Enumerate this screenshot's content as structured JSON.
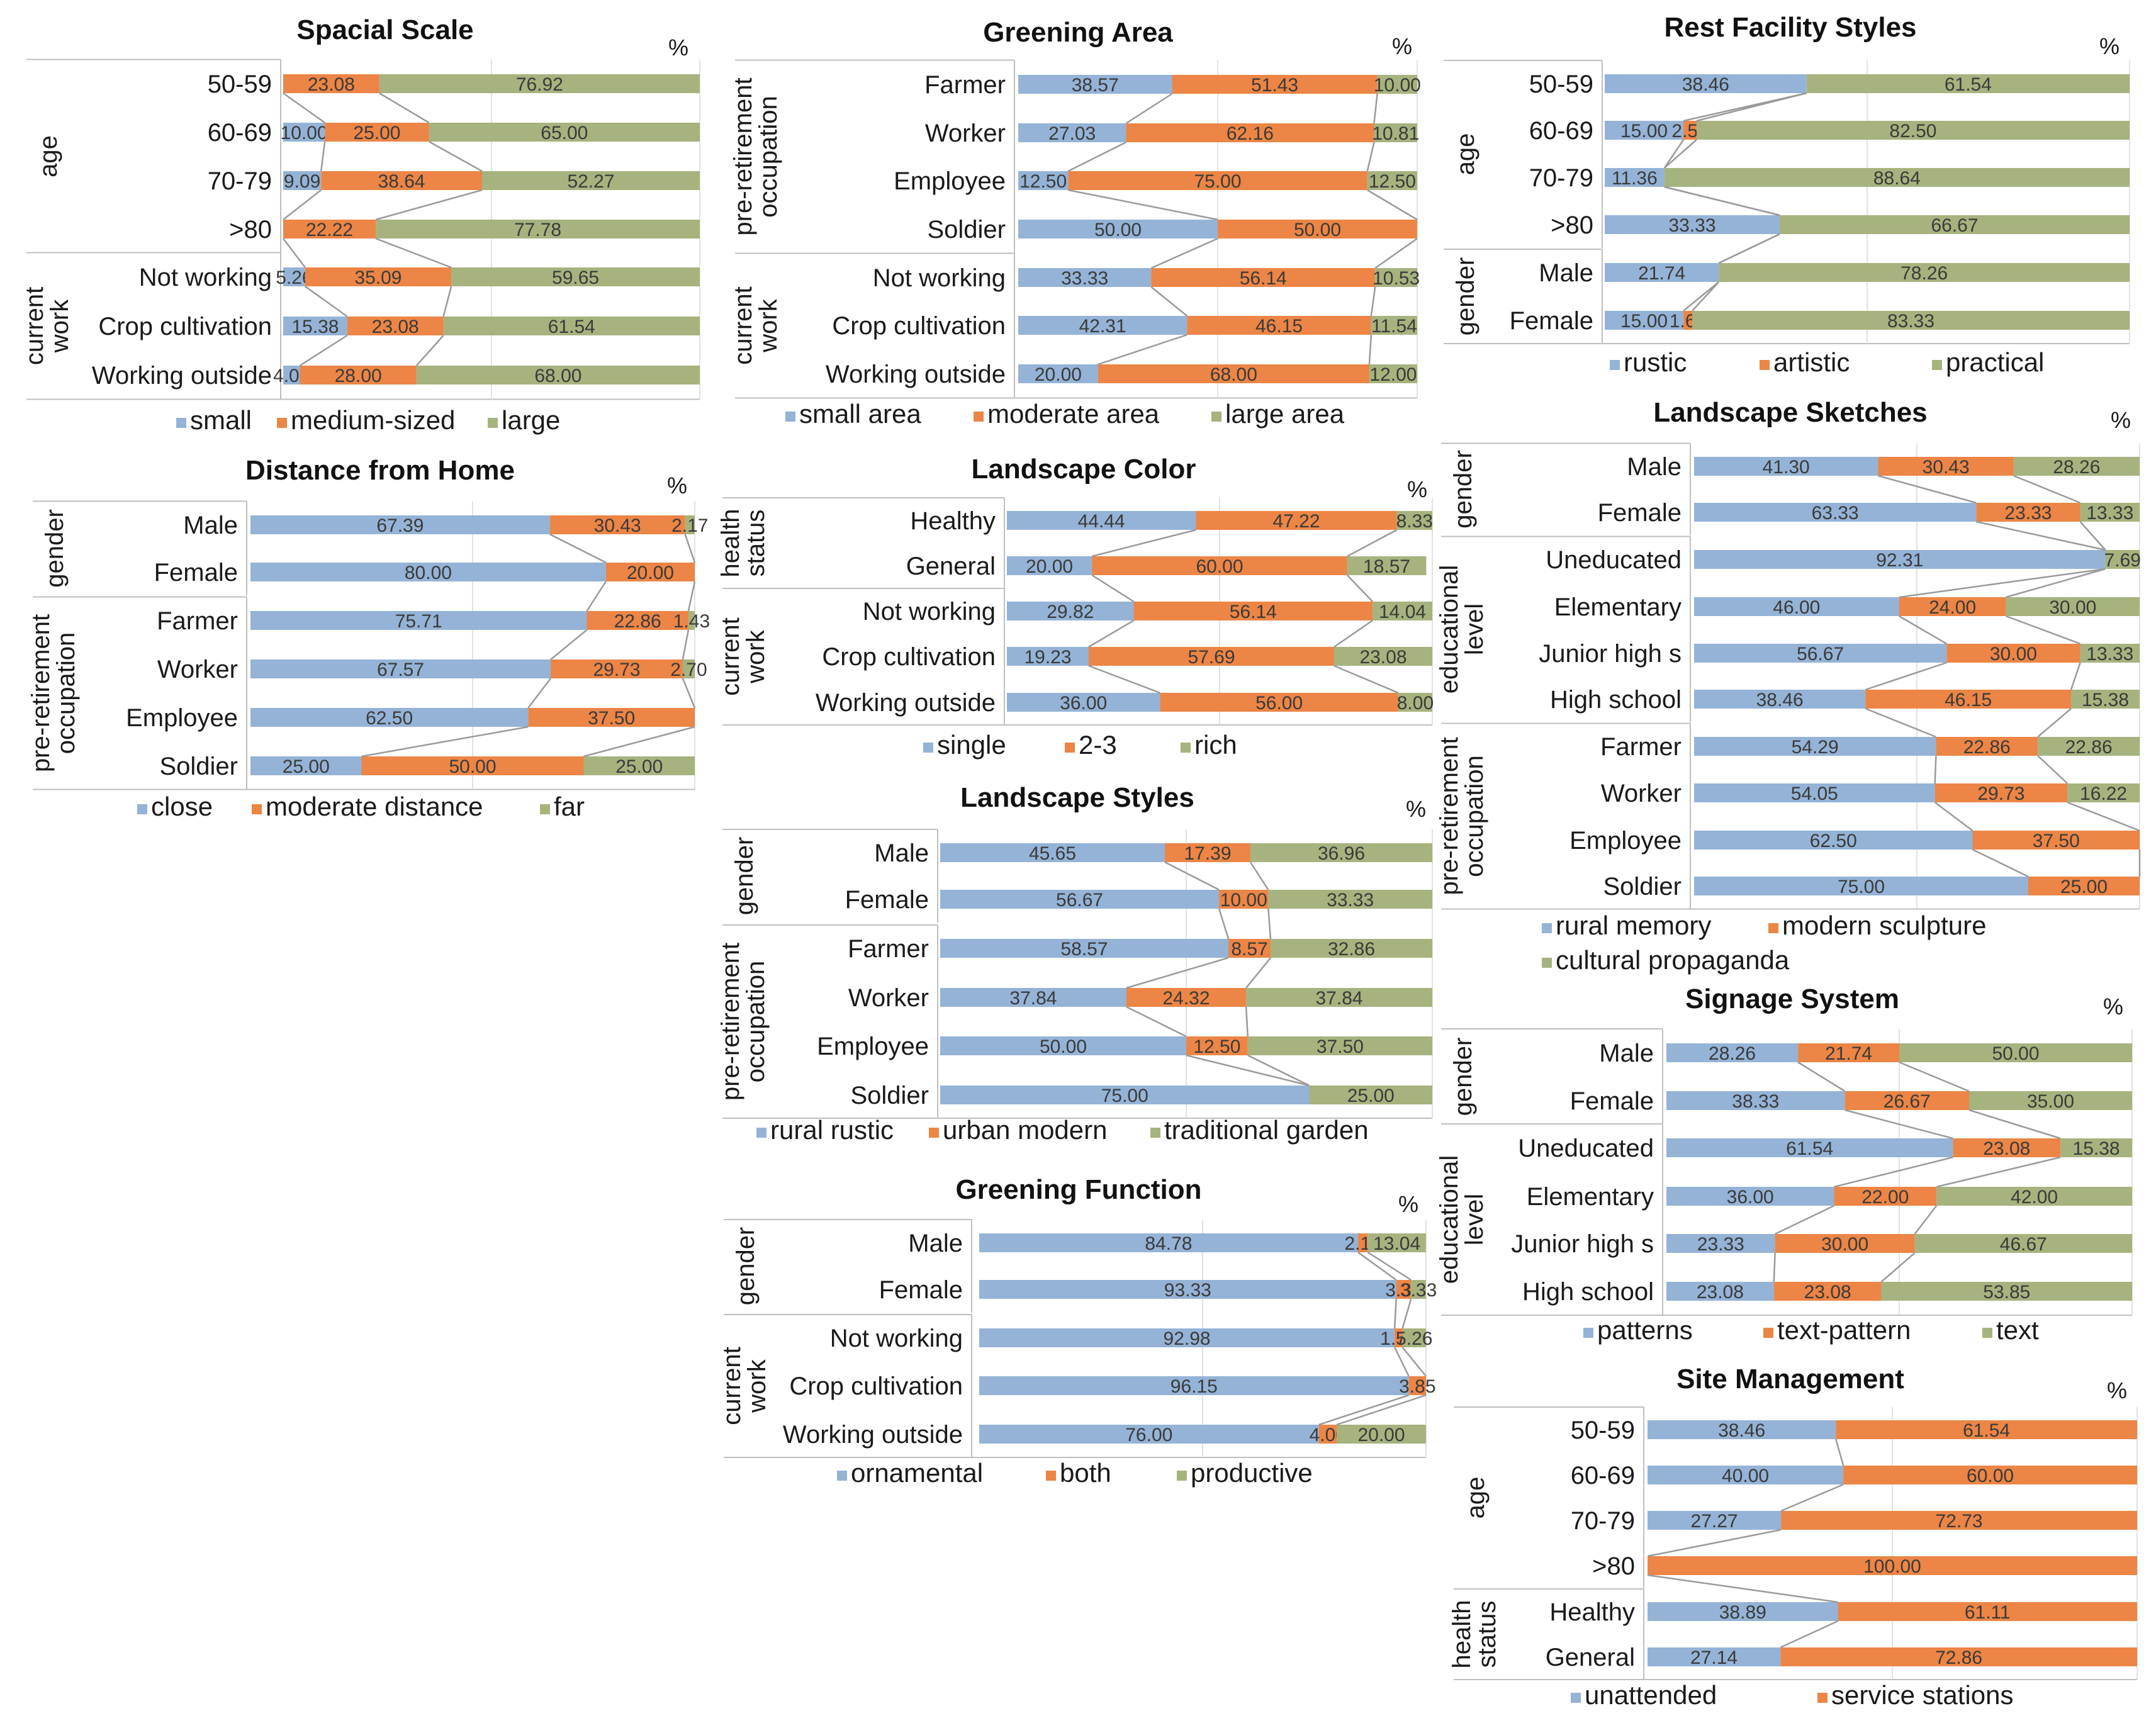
{
  "colors": {
    "blue": "#94b3d6",
    "orange": "#ec8545",
    "green": "#a6b37e",
    "connector": "#9a9a9a",
    "grid": "#bfbfbf",
    "frame": "#bfbfbf"
  },
  "chart_data": [
    {
      "type": "bar",
      "stacked": true,
      "title": "Spacial Scale",
      "unit": "%",
      "legend": [
        "small",
        "medium-sized",
        "large"
      ],
      "legend_rows": [
        [
          "small",
          "medium-sized",
          "large"
        ]
      ],
      "groups": [
        {
          "name": "age",
          "rows": [
            {
              "label": "50-59",
              "values": [
                null,
                23.08,
                76.92
              ]
            },
            {
              "label": "60-69",
              "values": [
                10.0,
                25.0,
                65.0
              ]
            },
            {
              "label": "70-79",
              "values": [
                9.09,
                38.64,
                52.27
              ]
            },
            {
              "label": ">80",
              "values": [
                null,
                22.22,
                77.78
              ]
            }
          ]
        },
        {
          "name": "current work",
          "rows": [
            {
              "label": "Not working",
              "values": [
                5.26,
                35.09,
                59.65
              ]
            },
            {
              "label": "Crop cultivation",
              "values": [
                15.38,
                23.08,
                61.54
              ]
            },
            {
              "label": "Working outside",
              "values": [
                4.0,
                28.0,
                68.0
              ]
            }
          ]
        }
      ]
    },
    {
      "type": "bar",
      "stacked": true,
      "title": "Greening Area",
      "unit": "%",
      "legend": [
        "small area",
        "moderate area",
        "large area"
      ],
      "legend_rows": [
        [
          "small area",
          "moderate area",
          "large area"
        ]
      ],
      "groups": [
        {
          "name": "pre-retirement occupation",
          "rows": [
            {
              "label": "Farmer",
              "values": [
                38.57,
                51.43,
                10.0
              ]
            },
            {
              "label": "Worker",
              "values": [
                27.03,
                62.16,
                10.81
              ]
            },
            {
              "label": "Employee",
              "values": [
                12.5,
                75.0,
                12.5
              ]
            },
            {
              "label": "Soldier",
              "values": [
                50.0,
                50.0,
                null
              ]
            }
          ]
        },
        {
          "name": "current work",
          "rows": [
            {
              "label": "Not working",
              "values": [
                33.33,
                56.14,
                10.53
              ]
            },
            {
              "label": "Crop cultivation",
              "values": [
                42.31,
                46.15,
                11.54
              ]
            },
            {
              "label": "Working outside",
              "values": [
                20.0,
                68.0,
                12.0
              ]
            }
          ]
        }
      ]
    },
    {
      "type": "bar",
      "stacked": true,
      "title": "Rest Facility Styles",
      "unit": "%",
      "legend": [
        "rustic",
        "artistic",
        "practical"
      ],
      "legend_rows": [
        [
          "rustic",
          "artistic",
          "practical"
        ]
      ],
      "groups": [
        {
          "name": "age",
          "rows": [
            {
              "label": "50-59",
              "values": [
                38.46,
                null,
                61.54
              ]
            },
            {
              "label": "60-69",
              "values": [
                15.0,
                2.5,
                82.5
              ]
            },
            {
              "label": "70-79",
              "values": [
                11.36,
                null,
                88.64
              ]
            },
            {
              "label": ">80",
              "values": [
                33.33,
                null,
                66.67
              ]
            }
          ]
        },
        {
          "name": "gender",
          "rows": [
            {
              "label": "Male",
              "values": [
                21.74,
                null,
                78.26
              ]
            },
            {
              "label": "Female",
              "values": [
                15.0,
                1.67,
                83.33
              ]
            }
          ]
        }
      ]
    },
    {
      "type": "bar",
      "stacked": true,
      "title": "Distance from Home",
      "unit": "%",
      "legend": [
        "close",
        "moderate distance",
        "far"
      ],
      "legend_rows": [
        [
          "close",
          "moderate distance",
          "far"
        ]
      ],
      "groups": [
        {
          "name": "gender",
          "rows": [
            {
              "label": "Male",
              "values": [
                67.39,
                30.43,
                2.17
              ]
            },
            {
              "label": "Female",
              "values": [
                80.0,
                20.0,
                null
              ]
            }
          ]
        },
        {
          "name": "pre-retirement occupation",
          "rows": [
            {
              "label": "Farmer",
              "values": [
                75.71,
                22.86,
                1.43
              ]
            },
            {
              "label": "Worker",
              "values": [
                67.57,
                29.73,
                2.7
              ]
            },
            {
              "label": "Employee",
              "values": [
                62.5,
                37.5,
                null
              ]
            },
            {
              "label": "Soldier",
              "values": [
                25.0,
                50.0,
                25.0
              ]
            }
          ]
        }
      ]
    },
    {
      "type": "bar",
      "stacked": true,
      "title": "Landscape Color",
      "unit": "%",
      "legend": [
        "single",
        "2-3",
        "rich"
      ],
      "legend_rows": [
        [
          "single",
          "2-3",
          "rich"
        ]
      ],
      "groups": [
        {
          "name": "health status",
          "rows": [
            {
              "label": "Healthy",
              "values": [
                44.44,
                47.22,
                8.33
              ]
            },
            {
              "label": "General",
              "values": [
                20.0,
                60.0,
                18.57
              ]
            }
          ]
        },
        {
          "name": "current work",
          "rows": [
            {
              "label": "Not working",
              "values": [
                29.82,
                56.14,
                14.04
              ]
            },
            {
              "label": "Crop cultivation",
              "values": [
                19.23,
                57.69,
                23.08
              ]
            },
            {
              "label": "Working outside",
              "values": [
                36.0,
                56.0,
                8.0
              ]
            }
          ]
        }
      ]
    },
    {
      "type": "bar",
      "stacked": true,
      "title": "Landscape Styles",
      "unit": "%",
      "legend": [
        "rural rustic",
        "urban modern",
        "traditional garden"
      ],
      "legend_rows": [
        [
          "rural rustic",
          "urban modern",
          "traditional garden"
        ]
      ],
      "groups": [
        {
          "name": "gender",
          "rows": [
            {
              "label": "Male",
              "values": [
                45.65,
                17.39,
                36.96
              ]
            },
            {
              "label": "Female",
              "values": [
                56.67,
                10.0,
                33.33
              ]
            }
          ]
        },
        {
          "name": "pre-retirement occupation",
          "rows": [
            {
              "label": "Farmer",
              "values": [
                58.57,
                8.57,
                32.86
              ]
            },
            {
              "label": "Worker",
              "values": [
                37.84,
                24.32,
                37.84
              ]
            },
            {
              "label": "Employee",
              "values": [
                50.0,
                12.5,
                37.5
              ]
            },
            {
              "label": "Soldier",
              "values": [
                75.0,
                null,
                25.0
              ]
            }
          ]
        }
      ]
    },
    {
      "type": "bar",
      "stacked": true,
      "title": "Greening Function",
      "unit": "%",
      "legend": [
        "ornamental",
        "both",
        "productive"
      ],
      "legend_rows": [
        [
          "ornamental",
          "both",
          "productive"
        ]
      ],
      "groups": [
        {
          "name": "gender",
          "rows": [
            {
              "label": "Male",
              "values": [
                84.78,
                2.17,
                13.04
              ]
            },
            {
              "label": "Female",
              "values": [
                93.33,
                3.33,
                3.33
              ]
            }
          ]
        },
        {
          "name": "current work",
          "rows": [
            {
              "label": "Not working",
              "values": [
                92.98,
                1.75,
                5.26
              ]
            },
            {
              "label": "Crop cultivation",
              "values": [
                96.15,
                3.85,
                null
              ]
            },
            {
              "label": "Working outside",
              "values": [
                76.0,
                4.0,
                20.0
              ]
            }
          ]
        }
      ]
    },
    {
      "type": "bar",
      "stacked": true,
      "title": "Landscape Sketches",
      "unit": "%",
      "legend": [
        "rural memory",
        "modern sculpture",
        "cultural propaganda"
      ],
      "legend_rows": [
        [
          "rural memory",
          "modern sculpture"
        ],
        [
          "cultural propaganda"
        ]
      ],
      "groups": [
        {
          "name": "gender",
          "rows": [
            {
              "label": "Male",
              "values": [
                41.3,
                30.43,
                28.26
              ]
            },
            {
              "label": "Female",
              "values": [
                63.33,
                23.33,
                13.33
              ]
            }
          ]
        },
        {
          "name": "educational level",
          "rows": [
            {
              "label": "Uneducated",
              "values": [
                92.31,
                null,
                7.69
              ]
            },
            {
              "label": "Elementary",
              "values": [
                46.0,
                24.0,
                30.0
              ]
            },
            {
              "label": "Junior high s",
              "values": [
                56.67,
                30.0,
                13.33
              ]
            },
            {
              "label": "High school",
              "values": [
                38.46,
                46.15,
                15.38
              ]
            }
          ]
        },
        {
          "name": "pre-retirement occupation",
          "rows": [
            {
              "label": "Farmer",
              "values": [
                54.29,
                22.86,
                22.86
              ]
            },
            {
              "label": "Worker",
              "values": [
                54.05,
                29.73,
                16.22
              ]
            },
            {
              "label": "Employee",
              "values": [
                62.5,
                37.5,
                null
              ]
            },
            {
              "label": "Soldier",
              "values": [
                75.0,
                25.0,
                null
              ]
            }
          ]
        }
      ]
    },
    {
      "type": "bar",
      "stacked": true,
      "title": "Signage System",
      "unit": "%",
      "legend": [
        "patterns",
        "text-pattern",
        "text"
      ],
      "legend_rows": [
        [
          "patterns",
          "text-pattern",
          "text"
        ]
      ],
      "groups": [
        {
          "name": "gender",
          "rows": [
            {
              "label": "Male",
              "values": [
                28.26,
                21.74,
                50.0
              ]
            },
            {
              "label": "Female",
              "values": [
                38.33,
                26.67,
                35.0
              ]
            }
          ]
        },
        {
          "name": "educational level",
          "rows": [
            {
              "label": "Uneducated",
              "values": [
                61.54,
                23.08,
                15.38
              ]
            },
            {
              "label": "Elementary",
              "values": [
                36.0,
                22.0,
                42.0
              ]
            },
            {
              "label": "Junior high s",
              "values": [
                23.33,
                30.0,
                46.67
              ]
            },
            {
              "label": "High school",
              "values": [
                23.08,
                23.08,
                53.85
              ]
            }
          ]
        }
      ]
    },
    {
      "type": "bar",
      "stacked": true,
      "title": "Site Management",
      "unit": "%",
      "legend": [
        "unattended",
        "service stations"
      ],
      "legend_rows": [
        [
          "unattended",
          "service stations"
        ]
      ],
      "groups": [
        {
          "name": "age",
          "rows": [
            {
              "label": "50-59",
              "values": [
                38.46,
                61.54
              ]
            },
            {
              "label": "60-69",
              "values": [
                40.0,
                60.0
              ]
            },
            {
              "label": "70-79",
              "values": [
                27.27,
                72.73
              ]
            },
            {
              "label": ">80",
              "values": [
                null,
                100.0
              ]
            }
          ]
        },
        {
          "name": "health status",
          "rows": [
            {
              "label": "Healthy",
              "values": [
                38.89,
                61.11
              ]
            },
            {
              "label": "General",
              "values": [
                27.14,
                72.86
              ]
            }
          ]
        }
      ]
    }
  ]
}
